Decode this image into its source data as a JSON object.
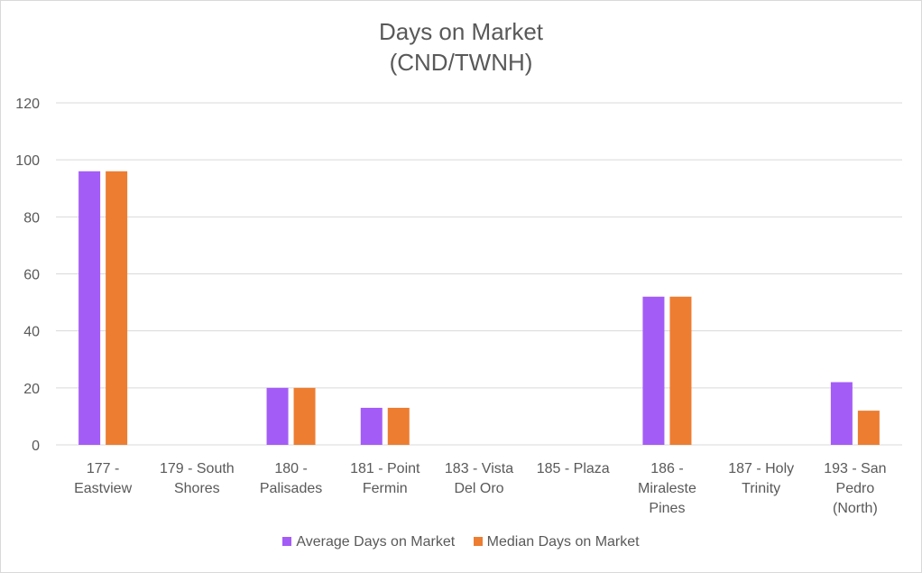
{
  "chart_data": {
    "type": "bar",
    "title": "Days on Market",
    "subtitle": "(CND/TWNH)",
    "categories": [
      [
        "177 -",
        "Eastview"
      ],
      [
        "179 - South",
        "Shores"
      ],
      [
        "180 -",
        "Palisades"
      ],
      [
        "181 - Point",
        "Fermin"
      ],
      [
        "183 - Vista",
        "Del Oro"
      ],
      [
        "185 - Plaza"
      ],
      [
        "186 -",
        "Miraleste",
        "Pines"
      ],
      [
        "187 - Holy",
        "Trinity"
      ],
      [
        "193 - San",
        "Pedro",
        "(North)"
      ]
    ],
    "series": [
      {
        "name": "Average Days on Market",
        "color": "#a45cf7",
        "values": [
          96,
          0,
          20,
          13,
          0,
          0,
          52,
          0,
          22
        ]
      },
      {
        "name": "Median Days on Market",
        "color": "#ed7d31",
        "values": [
          96,
          0,
          20,
          13,
          0,
          0,
          52,
          0,
          12
        ]
      }
    ],
    "ylim": [
      0,
      120
    ],
    "yticks": [
      0,
      20,
      40,
      60,
      80,
      100,
      120
    ],
    "grid": true,
    "legend": "bottom"
  }
}
